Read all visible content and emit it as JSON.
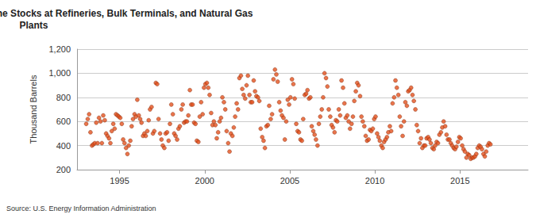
{
  "chart_data": {
    "type": "scatter",
    "title": "Monthly Wyoming Finished Motor Gasoline Stocks at Refineries, Bulk Terminals, and Natural Gas Plants",
    "y_label": "Thousand Barrels",
    "annotation": "Source: U.S. Energy Information Administration",
    "xlim": [
      1992.5,
      2019
    ],
    "xticks": [
      1995,
      2000,
      2005,
      2010,
      2015
    ],
    "ylim": [
      200,
      1200
    ],
    "yticks": [
      200,
      400,
      600,
      800,
      {
        "value": 1000,
        "label": "1,000"
      },
      {
        "value": 1200,
        "label": "1,200"
      }
    ],
    "grid": true,
    "marker": "circle",
    "color": "#e4511e",
    "x": [
      1993.04,
      1993.13,
      1993.21,
      1993.29,
      1993.38,
      1993.46,
      1993.54,
      1993.63,
      1993.71,
      1993.79,
      1993.88,
      1993.96,
      1994.04,
      1994.13,
      1994.21,
      1994.29,
      1994.38,
      1994.46,
      1994.54,
      1994.63,
      1994.71,
      1994.79,
      1994.88,
      1994.96,
      1995.04,
      1995.13,
      1995.21,
      1995.29,
      1995.38,
      1995.46,
      1995.54,
      1995.63,
      1995.71,
      1995.79,
      1995.88,
      1995.96,
      1996.04,
      1996.13,
      1996.21,
      1996.29,
      1996.38,
      1996.46,
      1996.54,
      1996.63,
      1996.71,
      1996.79,
      1996.88,
      1996.96,
      1997.04,
      1997.13,
      1997.21,
      1997.29,
      1997.38,
      1997.46,
      1997.54,
      1997.63,
      1997.71,
      1997.79,
      1997.88,
      1997.96,
      1998.04,
      1998.13,
      1998.21,
      1998.29,
      1998.38,
      1998.46,
      1998.54,
      1998.63,
      1998.71,
      1998.79,
      1998.88,
      1998.96,
      1999.04,
      1999.13,
      1999.21,
      1999.29,
      1999.38,
      1999.46,
      1999.54,
      1999.63,
      1999.71,
      1999.79,
      1999.88,
      1999.96,
      2000.04,
      2000.13,
      2000.21,
      2000.29,
      2000.38,
      2000.46,
      2000.54,
      2000.63,
      2000.71,
      2000.79,
      2000.88,
      2000.96,
      2001.04,
      2001.13,
      2001.21,
      2001.29,
      2001.38,
      2001.46,
      2001.54,
      2001.63,
      2001.71,
      2001.79,
      2001.88,
      2001.96,
      2002.04,
      2002.13,
      2002.21,
      2002.29,
      2002.38,
      2002.46,
      2002.54,
      2002.63,
      2002.71,
      2002.79,
      2002.88,
      2002.96,
      2003.04,
      2003.13,
      2003.21,
      2003.29,
      2003.38,
      2003.46,
      2003.54,
      2003.63,
      2003.71,
      2003.79,
      2003.88,
      2003.96,
      2004.04,
      2004.13,
      2004.21,
      2004.29,
      2004.38,
      2004.46,
      2004.54,
      2004.63,
      2004.71,
      2004.79,
      2004.88,
      2004.96,
      2005.04,
      2005.13,
      2005.21,
      2005.29,
      2005.38,
      2005.46,
      2005.54,
      2005.63,
      2005.71,
      2005.79,
      2005.88,
      2005.96,
      2006.04,
      2006.13,
      2006.21,
      2006.29,
      2006.38,
      2006.46,
      2006.54,
      2006.63,
      2006.71,
      2006.79,
      2006.88,
      2006.96,
      2007.04,
      2007.13,
      2007.21,
      2007.29,
      2007.38,
      2007.46,
      2007.54,
      2007.63,
      2007.71,
      2007.79,
      2007.88,
      2007.96,
      2008.04,
      2008.13,
      2008.21,
      2008.29,
      2008.38,
      2008.46,
      2008.54,
      2008.63,
      2008.71,
      2008.79,
      2008.88,
      2008.96,
      2009.04,
      2009.13,
      2009.21,
      2009.29,
      2009.38,
      2009.46,
      2009.54,
      2009.63,
      2009.71,
      2009.79,
      2009.88,
      2009.96,
      2010.04,
      2010.13,
      2010.21,
      2010.29,
      2010.38,
      2010.46,
      2010.54,
      2010.63,
      2010.71,
      2010.79,
      2010.88,
      2010.96,
      2011.04,
      2011.13,
      2011.21,
      2011.29,
      2011.38,
      2011.46,
      2011.54,
      2011.63,
      2011.71,
      2011.79,
      2011.88,
      2011.96,
      2012.04,
      2012.13,
      2012.21,
      2012.29,
      2012.38,
      2012.46,
      2012.54,
      2012.63,
      2012.71,
      2012.79,
      2012.88,
      2012.96,
      2013.04,
      2013.13,
      2013.21,
      2013.29,
      2013.38,
      2013.46,
      2013.54,
      2013.63,
      2013.71,
      2013.79,
      2013.88,
      2013.96,
      2014.04,
      2014.13,
      2014.21,
      2014.29,
      2014.38,
      2014.46,
      2014.54,
      2014.63,
      2014.71,
      2014.79,
      2014.88,
      2014.96,
      2015.04,
      2015.13,
      2015.21,
      2015.29,
      2015.38,
      2015.46,
      2015.54,
      2015.63,
      2015.71,
      2015.79,
      2015.88,
      2015.96,
      2016.04,
      2016.13,
      2016.21,
      2016.29,
      2016.38,
      2016.46,
      2016.54,
      2016.63,
      2016.71,
      2016.79
    ],
    "values": [
      580,
      620,
      660,
      510,
      400,
      410,
      420,
      590,
      420,
      630,
      600,
      420,
      650,
      610,
      500,
      480,
      460,
      420,
      520,
      580,
      540,
      660,
      650,
      640,
      630,
      580,
      450,
      420,
      380,
      330,
      400,
      440,
      560,
      620,
      660,
      640,
      780,
      650,
      620,
      590,
      480,
      500,
      480,
      520,
      610,
      700,
      720,
      500,
      520,
      920,
      910,
      620,
      500,
      450,
      400,
      380,
      500,
      510,
      440,
      580,
      740,
      660,
      500,
      480,
      450,
      540,
      560,
      700,
      740,
      590,
      600,
      600,
      650,
      860,
      740,
      740,
      590,
      580,
      440,
      430,
      640,
      760,
      660,
      880,
      910,
      920,
      880,
      820,
      670,
      570,
      600,
      570,
      460,
      510,
      600,
      630,
      800,
      760,
      700,
      520,
      420,
      350,
      500,
      480,
      550,
      640,
      750,
      700,
      960,
      980,
      870,
      820,
      790,
      900,
      980,
      820,
      760,
      760,
      940,
      850,
      810,
      800,
      770,
      540,
      470,
      440,
      380,
      560,
      570,
      730,
      620,
      660,
      950,
      1030,
      990,
      930,
      760,
      690,
      650,
      630,
      450,
      600,
      780,
      740,
      800,
      950,
      910,
      790,
      580,
      520,
      510,
      450,
      440,
      620,
      820,
      830,
      860,
      790,
      800,
      560,
      520,
      490,
      450,
      400,
      580,
      640,
      700,
      800,
      1000,
      960,
      890,
      700,
      640,
      570,
      550,
      510,
      610,
      600,
      700,
      650,
      940,
      880,
      750,
      630,
      650,
      600,
      540,
      580,
      640,
      770,
      850,
      920,
      900,
      810,
      640,
      600,
      560,
      480,
      440,
      450,
      530,
      520,
      540,
      620,
      640,
      500,
      470,
      440,
      400,
      380,
      430,
      450,
      470,
      510,
      560,
      520,
      750,
      800,
      940,
      880,
      820,
      640,
      560,
      480,
      600,
      760,
      730,
      850,
      860,
      880,
      820,
      770,
      700,
      570,
      520,
      420,
      460,
      380,
      400,
      400,
      460,
      470,
      450,
      420,
      380,
      370,
      400,
      430,
      420,
      490,
      510,
      550,
      600,
      560,
      490,
      450,
      450,
      420,
      400,
      380,
      370,
      390,
      430,
      470,
      460,
      400,
      370,
      350,
      300,
      330,
      320,
      290,
      300,
      300,
      310,
      330,
      380,
      400,
      390,
      370,
      330,
      310,
      350,
      400,
      420,
      410
    ]
  }
}
